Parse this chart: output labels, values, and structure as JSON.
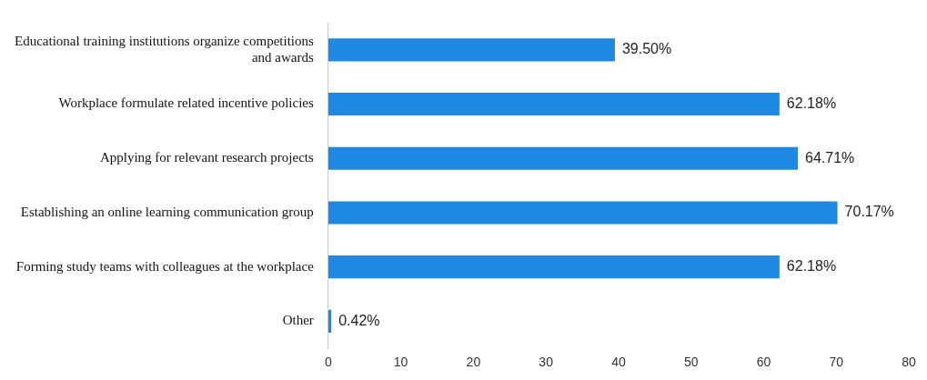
{
  "chart_data": {
    "type": "bar",
    "orientation": "horizontal",
    "categories": [
      "Educational training institutions organize competitions and awards",
      "Workplace formulate related incentive policies",
      "Applying for relevant research projects",
      "Establishing an online learning communication group",
      "Forming study teams with colleagues at the workplace",
      "Other"
    ],
    "values": [
      39.5,
      62.18,
      64.71,
      70.17,
      62.18,
      0.42
    ],
    "value_labels": [
      "39.50%",
      "62.18%",
      "64.71%",
      "70.17%",
      "62.18%",
      "0.42%"
    ],
    "color": "#1f88e0",
    "xlim": [
      0,
      80
    ],
    "xticks": [
      0,
      10,
      20,
      30,
      40,
      50,
      60,
      70,
      80
    ],
    "grid": false,
    "legend": false
  }
}
